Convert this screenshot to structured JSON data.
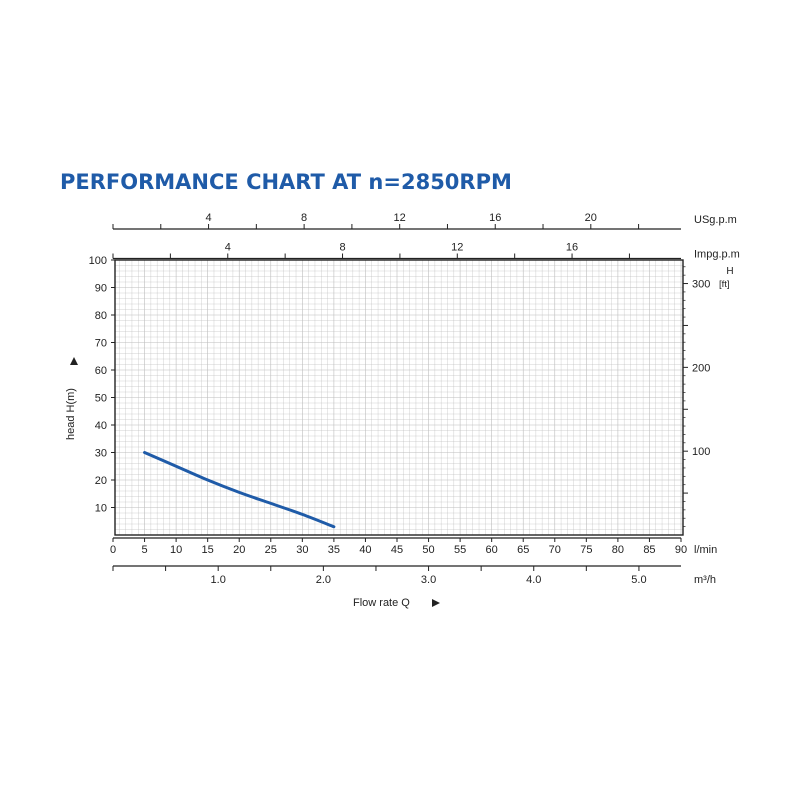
{
  "title": "PERFORMANCE CHART AT n=2850RPM",
  "colors": {
    "title": "#1f5ba8",
    "curve": "#1f5ba8",
    "grid": "#bdbdbd",
    "axis": "#222222"
  },
  "chart_data": {
    "type": "line",
    "title": "PERFORMANCE CHART AT n=2850RPM",
    "grid": true,
    "ylabel": "head H(m)",
    "ylim": [
      0,
      100
    ],
    "y_ticks": [
      "10",
      "20",
      "30",
      "40",
      "50",
      "60",
      "70",
      "80",
      "90",
      "100"
    ],
    "xlabel": "Flow rate Q",
    "x_unit": "l/min",
    "xlim": [
      0,
      90
    ],
    "x_ticks": [
      "0",
      "5",
      "10",
      "15",
      "20",
      "25",
      "30",
      "35",
      "40",
      "45",
      "50",
      "55",
      "60",
      "65",
      "70",
      "75",
      "80",
      "85",
      "90"
    ],
    "right_axis": {
      "label": "H",
      "unit": "[ft]",
      "ticks": [
        "100",
        "200",
        "300"
      ]
    },
    "top_axes": [
      {
        "unit": "USg.p.m",
        "ticks": [
          "4",
          "8",
          "12",
          "16",
          "20"
        ]
      },
      {
        "unit": "Impg.p.m",
        "ticks": [
          "4",
          "8",
          "12",
          "16"
        ]
      }
    ],
    "bottom_axis": {
      "unit": "m³/h",
      "ticks": [
        "1.0",
        "2.0",
        "3.0",
        "4.0",
        "5.0"
      ]
    },
    "series": [
      {
        "x": [
          5,
          10,
          15,
          20,
          25,
          30,
          35
        ],
        "y": [
          30,
          25,
          20,
          15.5,
          11.5,
          7.5,
          3
        ]
      }
    ]
  }
}
